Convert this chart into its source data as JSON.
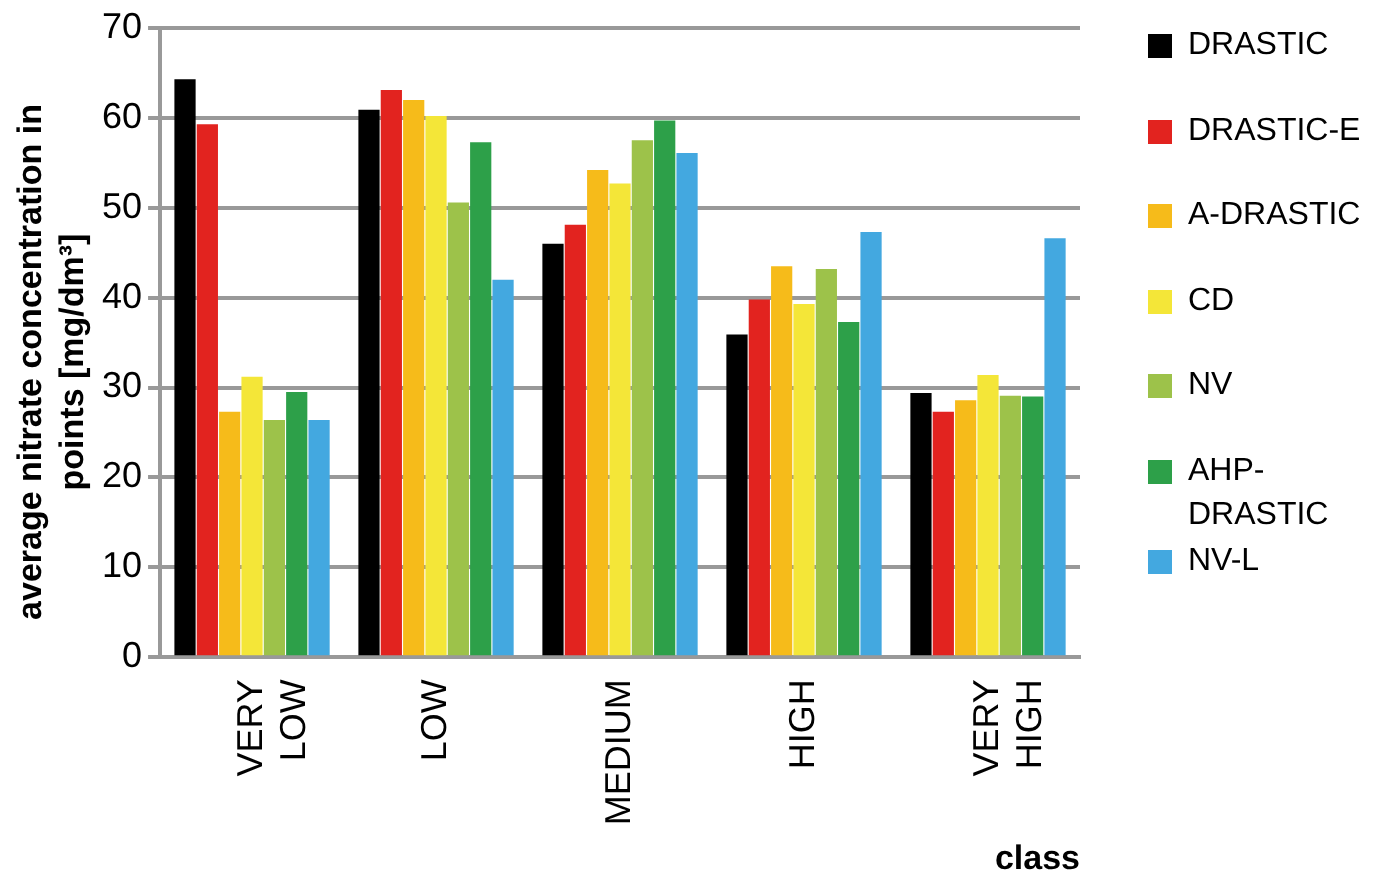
{
  "chart_data": {
    "type": "bar",
    "xlabel": "class",
    "ylabel": "average nitrate concentration in points [mg/dm³]",
    "categories": [
      "VERY LOW",
      "LOW",
      "MEDIUM",
      "HIGH",
      "VERY HIGH"
    ],
    "series": [
      {
        "name": "DRASTIC",
        "color": "#000000",
        "values": [
          64.3,
          60.9,
          46,
          35.9,
          29.4
        ]
      },
      {
        "name": "DRASTIC-E",
        "color": "#e2231f",
        "values": [
          59.3,
          63.1,
          48.1,
          39.8,
          27.3
        ]
      },
      {
        "name": "A-DRASTIC",
        "color": "#f6bb1a",
        "values": [
          27.3,
          62,
          54.2,
          43.5,
          28.6
        ]
      },
      {
        "name": "CD",
        "color": "#f4e638",
        "values": [
          31.2,
          60.2,
          52.7,
          39.3,
          31.4
        ]
      },
      {
        "name": "NV",
        "color": "#9dc24a",
        "values": [
          26.4,
          50.6,
          57.5,
          43.2,
          29.1
        ]
      },
      {
        "name": "AHP-DRASTIC",
        "color": "#2da049",
        "values": [
          29.5,
          57.3,
          59.7,
          37.3,
          29
        ]
      },
      {
        "name": "NV-L",
        "color": "#43a8e0",
        "values": [
          26.4,
          42,
          56.1,
          47.3,
          46.6
        ]
      }
    ],
    "ylim": [
      0,
      70
    ],
    "yticks": [
      0,
      10,
      20,
      30,
      40,
      50,
      60,
      70
    ],
    "grid": "y",
    "legend": "right"
  }
}
